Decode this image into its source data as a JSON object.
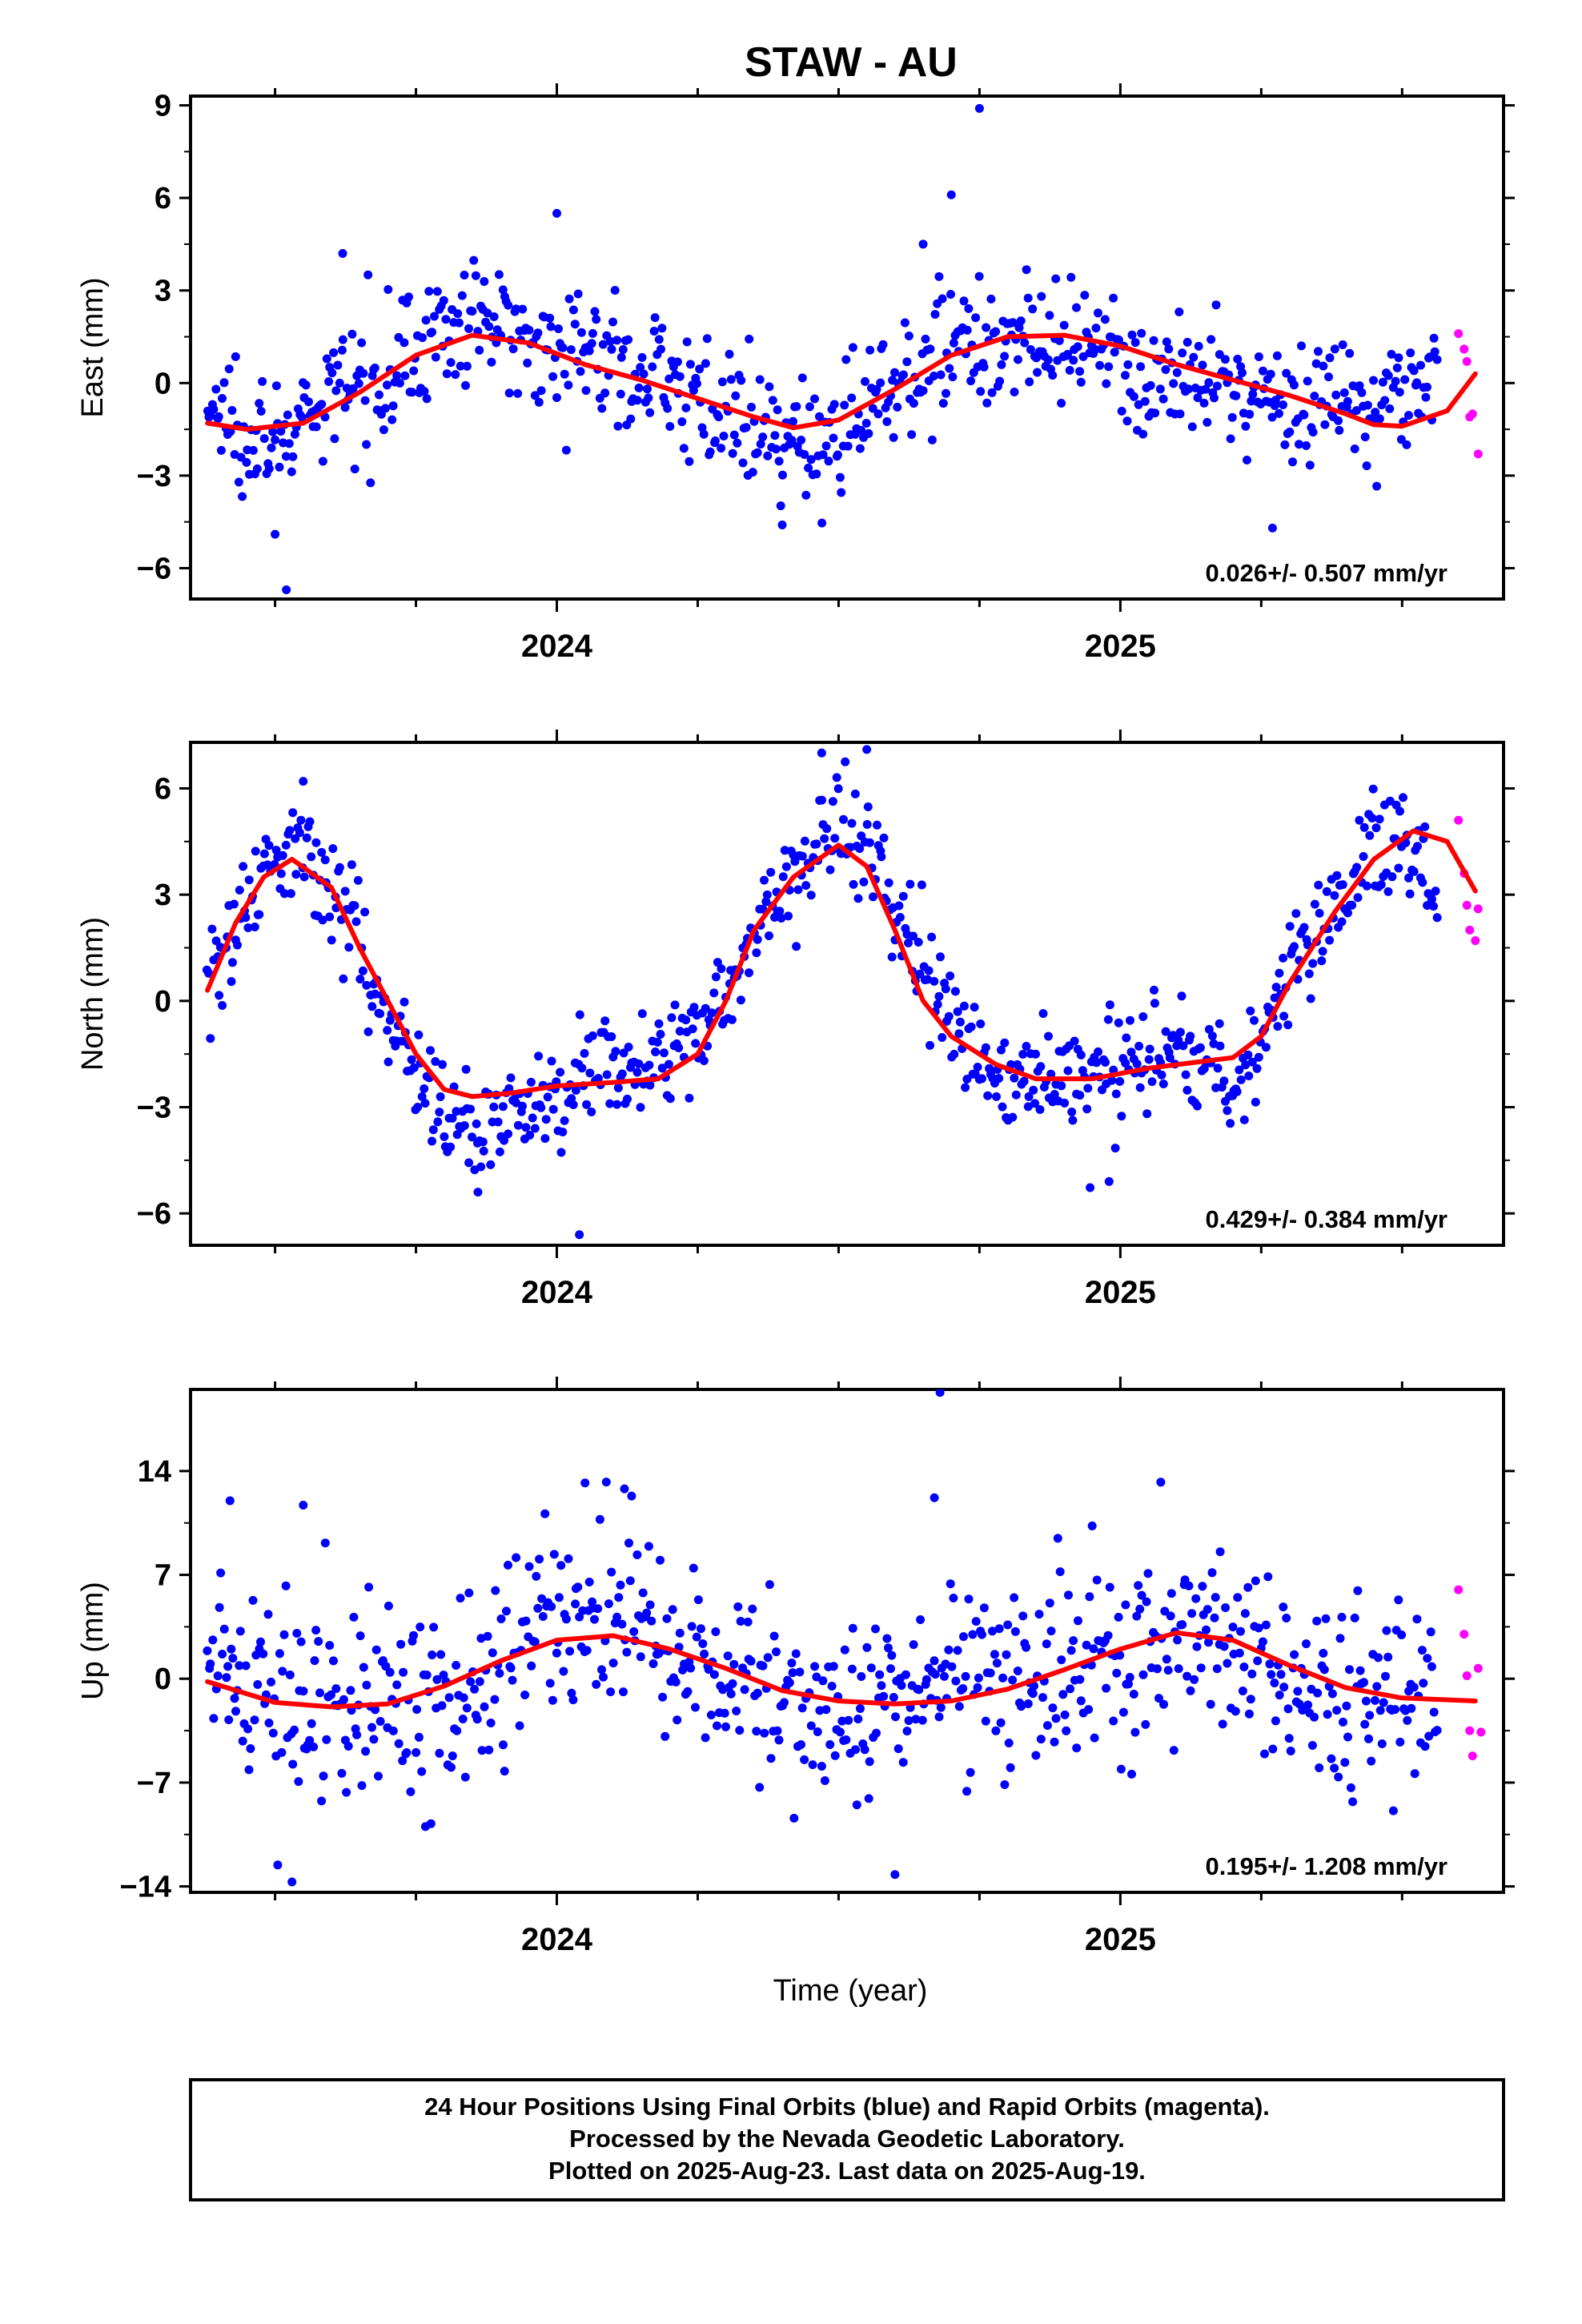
{
  "title": "STAW - AU",
  "xlabel": "Time (year)",
  "colors": {
    "final": "#0000ff",
    "rapid": "#ff00ff",
    "model": "#ff0000",
    "axis": "#000000"
  },
  "footer": {
    "line1": "24 Hour Positions Using Final Orbits (blue) and Rapid Orbits (magenta).",
    "line2": "Processed by the Nevada Geodetic Laboratory.",
    "line3": "Plotted on 2025-Aug-23. Last data on 2025-Aug-19."
  },
  "chart_data": [
    {
      "type": "scatter",
      "id": "east",
      "title": "STAW - AU",
      "xlabel": "",
      "ylabel": "East (mm)",
      "rate_label": "0.026+/- 0.507 mm/yr",
      "xlim": [
        2023.35,
        2025.68
      ],
      "ylim": [
        -7,
        9.3
      ],
      "xticks": [
        2024,
        2025
      ],
      "xtick_labels": [
        "2024",
        "2025"
      ],
      "yticks": [
        -6,
        -3,
        0,
        3,
        6,
        9
      ],
      "ytick_labels": [
        "−6",
        "−3",
        "0",
        "3",
        "6",
        "9"
      ],
      "model_curve": {
        "x": [
          2023.38,
          2023.45,
          2023.55,
          2023.65,
          2023.75,
          2023.85,
          2023.95,
          2024.05,
          2024.15,
          2024.25,
          2024.35,
          2024.42,
          2024.5,
          2024.6,
          2024.7,
          2024.8,
          2024.9,
          2025.0,
          2025.1,
          2025.2,
          2025.3,
          2025.4,
          2025.45,
          2025.5,
          2025.58,
          2025.63
        ],
        "y": [
          -1.3,
          -1.5,
          -1.3,
          -0.3,
          0.9,
          1.55,
          1.3,
          0.6,
          0.1,
          -0.5,
          -1.1,
          -1.45,
          -1.2,
          -0.2,
          0.9,
          1.5,
          1.55,
          1.2,
          0.6,
          0.1,
          -0.4,
          -1.0,
          -1.35,
          -1.4,
          -0.9,
          0.3
        ]
      },
      "series": [
        {
          "name": "Final Orbits",
          "color": "#0000ff",
          "mean_curve": [
            [
              2023.38,
              -0.9
            ],
            [
              2023.45,
              -1.2
            ],
            [
              2023.52,
              -2.0
            ],
            [
              2023.6,
              -0.5
            ],
            [
              2023.7,
              0.6
            ],
            [
              2023.8,
              1.7
            ],
            [
              2023.9,
              1.9
            ],
            [
              2024.0,
              1.3
            ],
            [
              2024.1,
              0.7
            ],
            [
              2024.2,
              0.2
            ],
            [
              2024.3,
              -1.1
            ],
            [
              2024.4,
              -2.2
            ],
            [
              2024.5,
              -1.6
            ],
            [
              2024.6,
              0.2
            ],
            [
              2024.7,
              1.3
            ],
            [
              2024.8,
              1.4
            ],
            [
              2024.9,
              0.9
            ],
            [
              2025.0,
              0.6
            ],
            [
              2025.1,
              -0.1
            ],
            [
              2025.2,
              -0.2
            ],
            [
              2025.3,
              -0.6
            ],
            [
              2025.4,
              -0.5
            ],
            [
              2025.5,
              -0.4
            ],
            [
              2025.56,
              0.3
            ]
          ],
          "noise_sd": 1.0,
          "outliers": [
            [
              2023.5,
              -4.9
            ],
            [
              2023.52,
              -6.7
            ],
            [
              2023.62,
              4.2
            ],
            [
              2024.0,
              5.5
            ],
            [
              2024.4,
              -4.6
            ],
            [
              2024.75,
              8.9
            ],
            [
              2024.7,
              6.1
            ],
            [
              2024.65,
              4.5
            ],
            [
              2025.27,
              -4.7
            ]
          ]
        },
        {
          "name": "Rapid Orbits",
          "color": "#ff00ff",
          "points": [
            [
              2025.6,
              1.6
            ],
            [
              2025.61,
              1.1
            ],
            [
              2025.615,
              0.7
            ],
            [
              2025.62,
              -1.1
            ],
            [
              2025.625,
              -1.0
            ],
            [
              2025.635,
              -2.3
            ]
          ]
        }
      ]
    },
    {
      "type": "scatter",
      "id": "north",
      "xlabel": "",
      "ylabel": "North (mm)",
      "rate_label": "0.429+/- 0.384 mm/yr",
      "xlim": [
        2023.35,
        2025.68
      ],
      "ylim": [
        -6.9,
        7.3
      ],
      "xticks": [
        2024,
        2025
      ],
      "xtick_labels": [
        "2024",
        "2025"
      ],
      "yticks": [
        -6,
        -3,
        0,
        3,
        6
      ],
      "ytick_labels": [
        "−6",
        "−3",
        "0",
        "3",
        "6"
      ],
      "model_curve": {
        "x": [
          2023.38,
          2023.43,
          2023.48,
          2023.53,
          2023.6,
          2023.65,
          2023.7,
          2023.75,
          2023.8,
          2023.85,
          2023.92,
          2024.0,
          2024.1,
          2024.18,
          2024.25,
          2024.3,
          2024.35,
          2024.42,
          2024.5,
          2024.55,
          2024.6,
          2024.65,
          2024.7,
          2024.78,
          2024.85,
          2024.95,
          2025.05,
          2025.15,
          2025.2,
          2025.25,
          2025.3,
          2025.38,
          2025.45,
          2025.52,
          2025.58,
          2025.63
        ],
        "y": [
          0.3,
          2.2,
          3.5,
          4.0,
          3.2,
          1.5,
          0.0,
          -1.5,
          -2.5,
          -2.7,
          -2.6,
          -2.4,
          -2.3,
          -2.2,
          -1.5,
          0.0,
          2.0,
          3.5,
          4.4,
          3.8,
          2.0,
          0.0,
          -1.0,
          -1.8,
          -2.2,
          -2.2,
          -1.9,
          -1.7,
          -1.6,
          -1.0,
          0.5,
          2.5,
          4.0,
          4.8,
          4.5,
          3.1
        ]
      },
      "series": [
        {
          "name": "Final Orbits",
          "color": "#0000ff",
          "mean_curve": [
            [
              2023.38,
              0.8
            ],
            [
              2023.43,
              2.2
            ],
            [
              2023.48,
              3.5
            ],
            [
              2023.53,
              4.6
            ],
            [
              2023.6,
              3.5
            ],
            [
              2023.65,
              1.6
            ],
            [
              2023.7,
              0.0
            ],
            [
              2023.75,
              -1.8
            ],
            [
              2023.8,
              -3.0
            ],
            [
              2023.85,
              -3.6
            ],
            [
              2023.92,
              -3.4
            ],
            [
              2024.0,
              -2.6
            ],
            [
              2024.1,
              -1.6
            ],
            [
              2024.18,
              -2.0
            ],
            [
              2024.25,
              -0.8
            ],
            [
              2024.3,
              0.3
            ],
            [
              2024.35,
              2.0
            ],
            [
              2024.42,
              3.6
            ],
            [
              2024.5,
              5.0
            ],
            [
              2024.55,
              4.6
            ],
            [
              2024.6,
              2.2
            ],
            [
              2024.65,
              1.2
            ],
            [
              2024.7,
              -0.8
            ],
            [
              2024.78,
              -1.8
            ],
            [
              2024.85,
              -2.2
            ],
            [
              2024.95,
              -2.3
            ],
            [
              2025.05,
              -1.5
            ],
            [
              2025.15,
              -1.7
            ],
            [
              2025.2,
              -2.4
            ],
            [
              2025.25,
              -1.2
            ],
            [
              2025.3,
              1.0
            ],
            [
              2025.38,
              2.8
            ],
            [
              2025.45,
              4.5
            ],
            [
              2025.52,
              4.4
            ],
            [
              2025.56,
              3.0
            ]
          ],
          "noise_sd": 0.75,
          "outliers": [
            [
              2023.86,
              -5.4
            ],
            [
              2024.04,
              -6.6
            ],
            [
              2024.47,
              7.0
            ],
            [
              2024.55,
              7.1
            ],
            [
              2024.98,
              -5.1
            ],
            [
              2023.55,
              6.2
            ]
          ]
        },
        {
          "name": "Rapid Orbits",
          "color": "#ff00ff",
          "points": [
            [
              2025.6,
              5.1
            ],
            [
              2025.61,
              3.6
            ],
            [
              2025.615,
              2.7
            ],
            [
              2025.62,
              2.0
            ],
            [
              2025.63,
              1.7
            ],
            [
              2025.635,
              2.6
            ]
          ]
        }
      ]
    },
    {
      "type": "scatter",
      "id": "up",
      "xlabel": "Time (year)",
      "ylabel": "Up (mm)",
      "rate_label": "0.195+/- 1.208 mm/yr",
      "xlim": [
        2023.35,
        2025.68
      ],
      "ylim": [
        -14.4,
        19.5
      ],
      "xticks": [
        2024,
        2025
      ],
      "xtick_labels": [
        "2024",
        "2025"
      ],
      "yticks": [
        -14,
        -7,
        0,
        7,
        14
      ],
      "ytick_labels": [
        "−14",
        "−7",
        "0",
        "7",
        "14"
      ],
      "model_curve": {
        "x": [
          2023.38,
          2023.5,
          2023.6,
          2023.7,
          2023.8,
          2023.9,
          2024.0,
          2024.1,
          2024.2,
          2024.3,
          2024.4,
          2024.5,
          2024.6,
          2024.7,
          2024.8,
          2024.9,
          2025.0,
          2025.1,
          2025.2,
          2025.3,
          2025.4,
          2025.5,
          2025.63
        ],
        "y": [
          -0.2,
          -1.6,
          -1.9,
          -1.7,
          -0.5,
          1.2,
          2.6,
          2.9,
          2.0,
          0.7,
          -0.8,
          -1.5,
          -1.7,
          -1.5,
          -0.7,
          0.6,
          2.0,
          3.1,
          2.6,
          0.9,
          -0.6,
          -1.3,
          -1.5
        ]
      },
      "series": [
        {
          "name": "Final Orbits",
          "color": "#0000ff",
          "mean_curve": [
            [
              2023.38,
              0.5
            ],
            [
              2023.5,
              -1.0
            ],
            [
              2023.6,
              -2.0
            ],
            [
              2023.7,
              -1.5
            ],
            [
              2023.8,
              -1.0
            ],
            [
              2023.9,
              1.0
            ],
            [
              2024.0,
              3.0
            ],
            [
              2024.1,
              3.5
            ],
            [
              2024.2,
              2.0
            ],
            [
              2024.3,
              0.5
            ],
            [
              2024.4,
              -1.0
            ],
            [
              2024.5,
              -2.5
            ],
            [
              2024.6,
              -2.0
            ],
            [
              2024.7,
              -1.0
            ],
            [
              2024.8,
              0.5
            ],
            [
              2024.9,
              1.0
            ],
            [
              2025.0,
              2.0
            ],
            [
              2025.1,
              3.5
            ],
            [
              2025.2,
              2.5
            ],
            [
              2025.3,
              0.5
            ],
            [
              2025.4,
              -1.5
            ],
            [
              2025.5,
              -2.0
            ],
            [
              2025.56,
              -2.5
            ]
          ],
          "noise_sd": 3.2,
          "outliers": [
            [
              2024.68,
              19.3
            ],
            [
              2023.53,
              -13.7
            ],
            [
              2024.6,
              -13.2
            ],
            [
              2024.12,
              12.8
            ],
            [
              2024.05,
              13.2
            ],
            [
              2023.55,
              11.7
            ],
            [
              2023.42,
              12.0
            ],
            [
              2024.67,
              12.2
            ],
            [
              2024.95,
              10.3
            ]
          ]
        },
        {
          "name": "Rapid Orbits",
          "color": "#ff00ff",
          "points": [
            [
              2025.6,
              6.0
            ],
            [
              2025.61,
              3.0
            ],
            [
              2025.615,
              0.2
            ],
            [
              2025.62,
              -3.5
            ],
            [
              2025.625,
              -5.2
            ],
            [
              2025.635,
              0.7
            ],
            [
              2025.64,
              -3.6
            ]
          ]
        }
      ]
    }
  ]
}
